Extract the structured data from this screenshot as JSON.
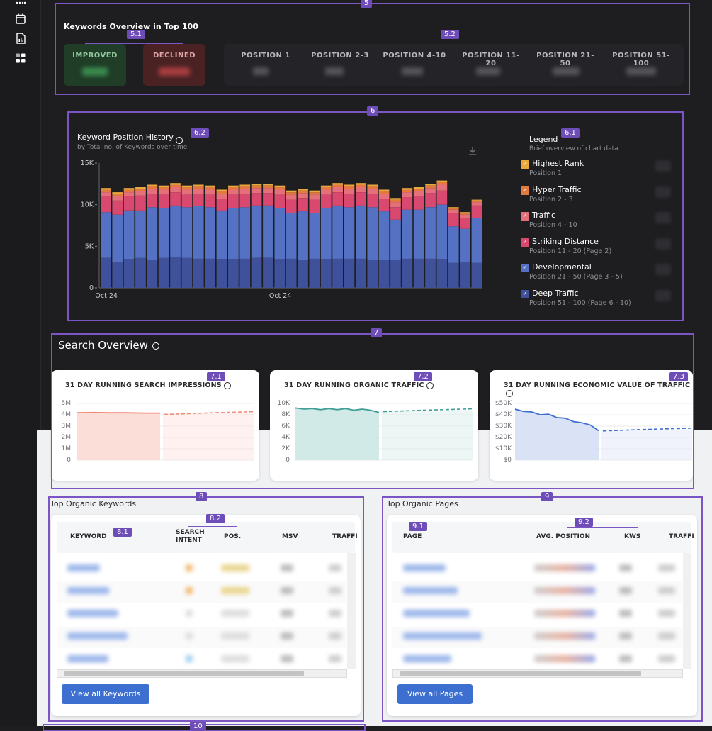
{
  "sidebar": {
    "icons": [
      "grid-dots-icon",
      "calendar-icon",
      "report-icon",
      "apps-icon"
    ]
  },
  "tags": {
    "t5": "5",
    "t51": "5.1",
    "t52": "5.2",
    "t6": "6",
    "t61": "6.1",
    "t62": "6.2",
    "t7": "7",
    "t71": "7.1",
    "t72": "7.2",
    "t73": "7.3",
    "t8": "8",
    "t81": "8.1",
    "t82": "8.2",
    "t9": "9",
    "t91": "9.1",
    "t92": "9.2",
    "t10": "10"
  },
  "overview": {
    "title": "Keywords Overview in Top 100",
    "improved": "IMPROVED",
    "declined": "DECLINED",
    "positions": [
      "POSITION 1",
      "POSITION 2-3",
      "POSITION 4-10",
      "POSITION 11-20",
      "POSITION 21-50",
      "POSITION 51-100"
    ]
  },
  "history": {
    "title": "Keyword Position History",
    "subtitle": "by Total no. of Keywords over time",
    "legend_title": "Legend",
    "legend_sub": "Brief overview of chart data",
    "legend": [
      {
        "name": "Highest Rank",
        "sub": "Position 1",
        "color": "#e8a93d"
      },
      {
        "name": "Hyper Traffic",
        "sub": "Position 2 - 3",
        "color": "#e27a3f"
      },
      {
        "name": "Traffic",
        "sub": "Position 4 - 10",
        "color": "#e5707a"
      },
      {
        "name": "Striking Distance",
        "sub": "Position 11 - 20 (Page 2)",
        "color": "#d9486f"
      },
      {
        "name": "Developmental",
        "sub": "Position 21 - 50 (Page 3 - 5)",
        "color": "#5471c4"
      },
      {
        "name": "Deep Traffic",
        "sub": "Position 51 - 100 (Page 6 - 10)",
        "color": "#3f519a"
      }
    ]
  },
  "chart_data": {
    "type": "bar",
    "yticks": [
      "15K",
      "10K",
      "5K",
      "0"
    ],
    "ylim": [
      0,
      15000
    ],
    "xticks": [
      "Oct 24",
      "Oct 24"
    ],
    "series": [
      {
        "name": "Deep Traffic",
        "values": [
          3600,
          3100,
          3500,
          3600,
          3400,
          3600,
          3700,
          3600,
          3500,
          3500,
          3500,
          3500,
          3500,
          3600,
          3600,
          3500,
          3500,
          3400,
          3500,
          3500,
          3500,
          3500,
          3500,
          3400,
          3400,
          3400,
          3500,
          3500,
          3500,
          3500,
          3000,
          3100,
          3000
        ]
      },
      {
        "name": "Developmental",
        "values": [
          5500,
          5700,
          5800,
          5700,
          6300,
          6000,
          6200,
          6100,
          6300,
          6200,
          5800,
          6100,
          6200,
          6300,
          6300,
          6100,
          5500,
          5800,
          5500,
          6100,
          6400,
          6200,
          6400,
          6300,
          5800,
          4800,
          5900,
          5900,
          6200,
          6500,
          4400,
          4000,
          5400
        ]
      },
      {
        "name": "Striking Distance",
        "values": [
          1900,
          1700,
          1700,
          1800,
          1600,
          1600,
          1600,
          1500,
          1500,
          1500,
          1400,
          1600,
          1600,
          1500,
          1500,
          1600,
          1600,
          1600,
          1600,
          1600,
          1600,
          1600,
          1600,
          1600,
          1500,
          1500,
          1500,
          1600,
          1700,
          1700,
          1600,
          1300,
          1500
        ]
      },
      {
        "name": "Traffic",
        "values": [
          500,
          500,
          500,
          500,
          600,
          600,
          600,
          600,
          600,
          600,
          600,
          600,
          600,
          600,
          600,
          600,
          600,
          600,
          600,
          600,
          600,
          600,
          600,
          600,
          600,
          600,
          600,
          600,
          600,
          700,
          400,
          400,
          400
        ]
      },
      {
        "name": "Hyper Traffic",
        "values": [
          300,
          300,
          300,
          300,
          300,
          300,
          300,
          300,
          300,
          300,
          300,
          300,
          300,
          300,
          300,
          300,
          300,
          300,
          300,
          300,
          300,
          300,
          300,
          300,
          300,
          300,
          300,
          300,
          300,
          300,
          200,
          200,
          200
        ]
      },
      {
        "name": "Highest Rank",
        "values": [
          200,
          200,
          200,
          200,
          200,
          200,
          200,
          200,
          200,
          200,
          200,
          200,
          200,
          200,
          200,
          200,
          200,
          200,
          200,
          200,
          200,
          200,
          200,
          200,
          200,
          200,
          200,
          200,
          200,
          200,
          100,
          100,
          100
        ]
      }
    ]
  },
  "search": {
    "title": "Search Overview",
    "cards": [
      {
        "title": "31 DAY RUNNING SEARCH IMPRESSIONS",
        "ticks": [
          "5M",
          "4M",
          "3M",
          "2M",
          "1M",
          "0"
        ],
        "color": "#f08a78",
        "fill": "#fbd8d1"
      },
      {
        "title": "31 DAY RUNNING ORGANIC TRAFFIC",
        "ticks": [
          "10K",
          "8K",
          "6K",
          "4K",
          "2K",
          "0"
        ],
        "color": "#3e9e97",
        "fill": "#c9e6e3"
      },
      {
        "title": "31 DAY RUNNING ECONOMIC VALUE OF TRAFFIC",
        "ticks": [
          "$50K",
          "$40K",
          "$30K",
          "$20K",
          "$10K",
          "$0"
        ],
        "color": "#3d6fd1",
        "fill": "#d4ddf5"
      }
    ]
  },
  "keywords": {
    "title": "Top Organic Keywords",
    "headers": {
      "keyword": "KEYWORD",
      "intent1": "SEARCH",
      "intent2": "INTENT",
      "pos": "POS.",
      "msv": "MSV",
      "traffic": "TRAFFI"
    },
    "button": "View all Keywords"
  },
  "pages": {
    "title": "Top Organic Pages",
    "headers": {
      "page": "PAGE",
      "avg": "AVG. POSITION",
      "kws": "KWS",
      "traffic": "TRAFFI"
    },
    "button": "View all Pages"
  }
}
